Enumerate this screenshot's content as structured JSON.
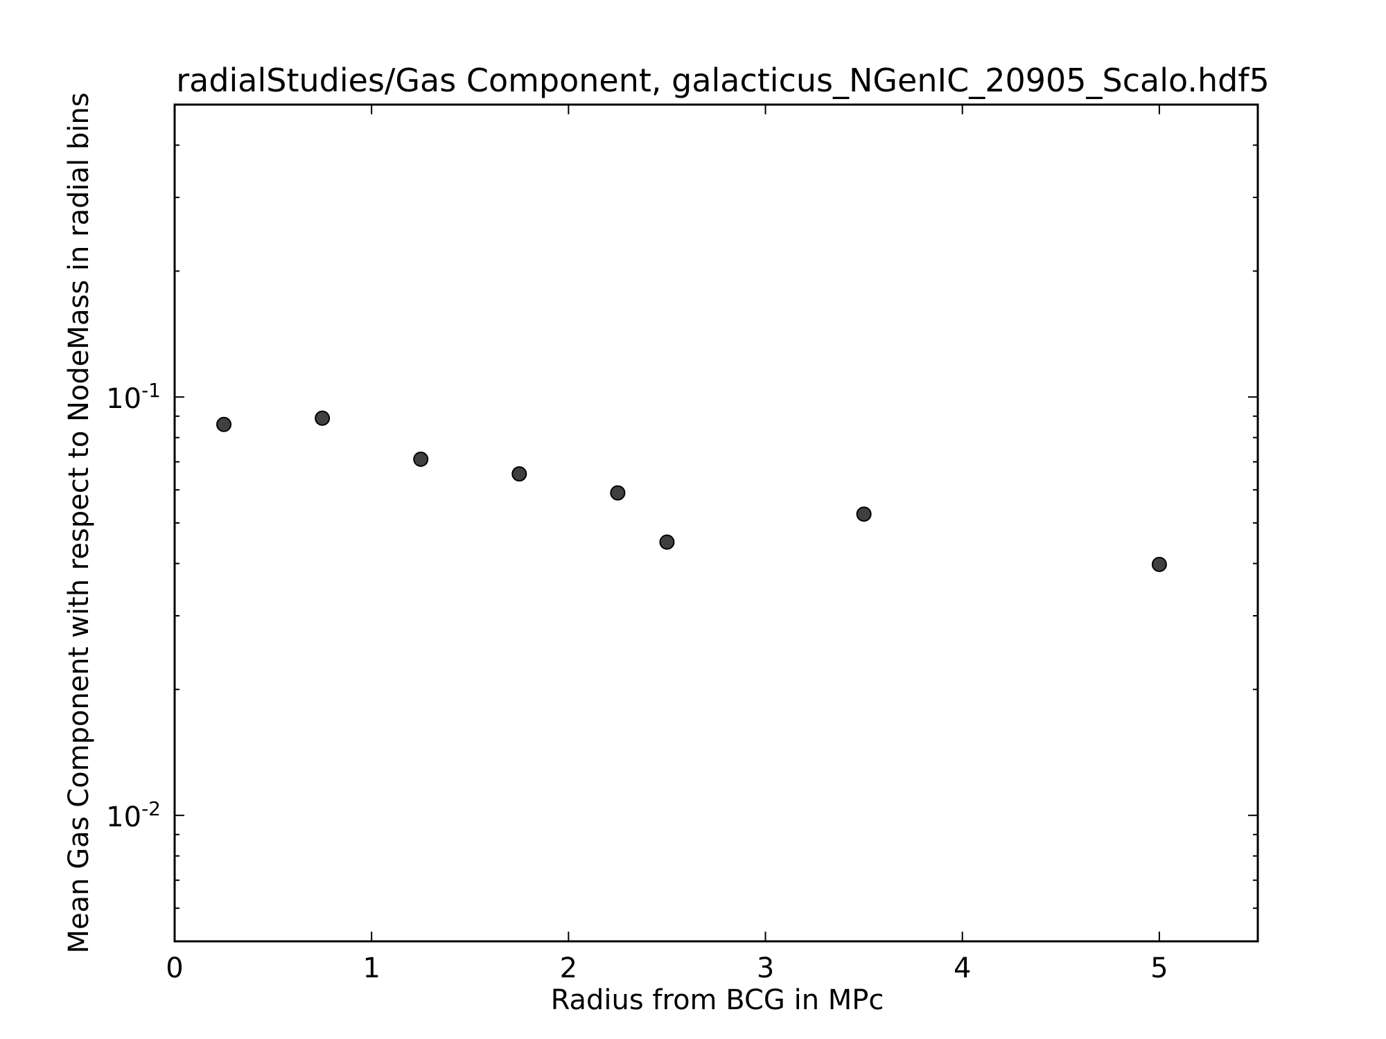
{
  "chart_data": {
    "type": "scatter",
    "title": "radialStudies/Gas Component, galacticus_NGenIC_20905_Scalo.hdf5",
    "xlabel": "Radius from BCG in MPc",
    "ylabel": "Mean Gas Component with respect to NodeMass in radial bins",
    "xlim": [
      0,
      5.5
    ],
    "ylim": [
      0.005,
      0.5
    ],
    "yscale": "log",
    "grid": false,
    "x_ticks": [
      0,
      1,
      2,
      3,
      4,
      5
    ],
    "x_tick_labels": [
      "0",
      "1",
      "2",
      "3",
      "4",
      "5"
    ],
    "y_ticks": [
      {
        "value": 0.1,
        "base": "10",
        "exp": "-1"
      },
      {
        "value": 0.01,
        "base": "10",
        "exp": "-2"
      }
    ],
    "marker_color": "#404040",
    "marker_edge_color": "#000000",
    "series": [
      {
        "x": [
          0.25,
          0.75,
          1.25,
          1.75,
          2.25,
          2.5,
          3.5,
          5.0
        ],
        "y": [
          0.086,
          0.089,
          0.071,
          0.0655,
          0.059,
          0.045,
          0.0525,
          0.0398
        ]
      }
    ]
  }
}
